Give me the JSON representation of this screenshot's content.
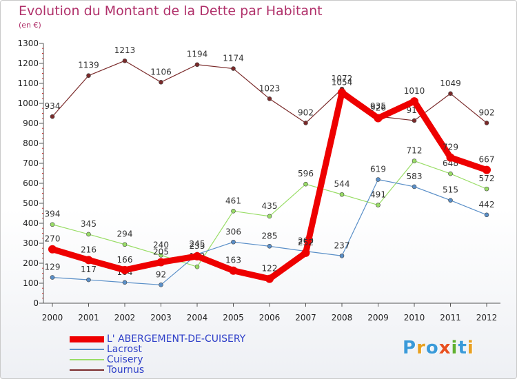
{
  "title": "Evolution du Montant de la Dette par Habitant",
  "unit": "(en €)",
  "brand": "Proxiti",
  "colors": {
    "title": "#b0306a",
    "legend_text": "#2d3ec8",
    "axis": "#555555",
    "grid_dash": "#cc3333"
  },
  "chart_data": {
    "type": "line",
    "x": [
      "2000",
      "2001",
      "2002",
      "2003",
      "2004",
      "2005",
      "2006",
      "2007",
      "2008",
      "2009",
      "2010",
      "2011",
      "2012"
    ],
    "ylim": [
      0,
      1300
    ],
    "yticks": [
      0,
      100,
      200,
      300,
      400,
      500,
      600,
      700,
      800,
      900,
      1000,
      1100,
      1200,
      1300
    ],
    "xlabel": "",
    "ylabel": "",
    "grid": false,
    "legend_position": "bottom-left",
    "series": [
      {
        "name": "L' ABERGEMENT-DE-CUISERY",
        "color": "#ee0000",
        "width": 9,
        "values": [
          270,
          216,
          166,
          205,
          235,
          163,
          122,
          252,
          1054,
          926,
          1010,
          729,
          667
        ]
      },
      {
        "name": "Lacrost",
        "color": "#5a8fc8",
        "width": 1.2,
        "values": [
          129,
          117,
          104,
          92,
          245,
          306,
          285,
          260,
          237,
          619,
          583,
          515,
          442
        ]
      },
      {
        "name": "Cuisery",
        "color": "#99dd66",
        "width": 1.2,
        "values": [
          394,
          345,
          294,
          240,
          182,
          461,
          435,
          596,
          544,
          491,
          712,
          648,
          572
        ]
      },
      {
        "name": "Tournus",
        "color": "#7a2a2a",
        "width": 1.2,
        "values": [
          934,
          1139,
          1213,
          1106,
          1194,
          1174,
          1023,
          902,
          1072,
          935,
          914,
          1049,
          902
        ]
      }
    ]
  }
}
